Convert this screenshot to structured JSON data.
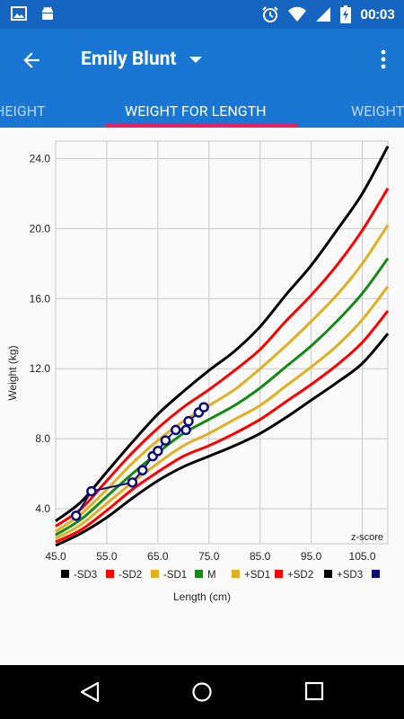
{
  "status_bar": {
    "time": "00:03",
    "icons": [
      "image-icon",
      "android-icon",
      "alarm-icon",
      "wifi-icon",
      "signal-icon",
      "battery-charging-icon"
    ]
  },
  "toolbar": {
    "title": "Emily Blunt",
    "back_icon": "arrow-back-icon",
    "dropdown_icon": "dropdown-arrow-icon",
    "more_icon": "more-vert-icon"
  },
  "tabs": [
    {
      "label": "HEIGHT",
      "selected": false
    },
    {
      "label": "WEIGHT FOR LENGTH",
      "selected": true
    },
    {
      "label": "WEIGHT",
      "selected": false
    }
  ],
  "colors": {
    "primary": "#1976d2",
    "primary_dark": "#1565c0",
    "accent": "#e91e63"
  },
  "chart_data": {
    "type": "line",
    "xlabel": "Length (cm)",
    "ylabel": "Weight (kg)",
    "annotation": "z-score",
    "xlim": [
      45,
      110
    ],
    "ylim": [
      2,
      25
    ],
    "x_ticks": [
      "45.0",
      "55.0",
      "65.0",
      "75.0",
      "85.0",
      "95.0",
      "105.0"
    ],
    "y_ticks": [
      "4.0",
      "8.0",
      "12.0",
      "16.0",
      "20.0",
      "24.0"
    ],
    "grid": true,
    "legend_position": "bottom",
    "legend": [
      {
        "label": "-SD3",
        "color": "#000000"
      },
      {
        "label": "-SD2",
        "color": "#ff0000"
      },
      {
        "label": "-SD1",
        "color": "#e0b020"
      },
      {
        "label": "M",
        "color": "#138a13"
      },
      {
        "label": "+SD1",
        "color": "#e0b020"
      },
      {
        "label": "+SD2",
        "color": "#ff0000"
      },
      {
        "label": "+SD3",
        "color": "#000000"
      },
      {
        "label": "",
        "color": "#0b0b7a"
      }
    ],
    "x": [
      45,
      50,
      55,
      60,
      65,
      70,
      75,
      80,
      85,
      90,
      95,
      100,
      105,
      110
    ],
    "series": [
      {
        "name": "-SD3",
        "color": "#000000",
        "values": [
          1.9,
          2.6,
          3.5,
          4.6,
          5.6,
          6.4,
          7.0,
          7.6,
          8.3,
          9.2,
          10.2,
          11.2,
          12.3,
          14.0
        ]
      },
      {
        "name": "-SD2",
        "color": "#ff0000",
        "values": [
          2.1,
          2.8,
          3.9,
          5.1,
          6.1,
          7.0,
          7.6,
          8.3,
          9.1,
          10.1,
          11.1,
          12.2,
          13.5,
          15.3
        ]
      },
      {
        "name": "-SD1",
        "color": "#e0b020",
        "values": [
          2.3,
          3.1,
          4.3,
          5.5,
          6.6,
          7.6,
          8.3,
          9.1,
          9.9,
          11.0,
          12.1,
          13.3,
          14.8,
          16.7
        ]
      },
      {
        "name": "M",
        "color": "#138a13",
        "values": [
          2.5,
          3.4,
          4.7,
          6.0,
          7.2,
          8.3,
          9.1,
          9.9,
          10.9,
          12.1,
          13.3,
          14.7,
          16.3,
          18.3
        ]
      },
      {
        "name": "+SD1",
        "color": "#e0b020",
        "values": [
          2.7,
          3.7,
          5.1,
          6.6,
          7.9,
          9.0,
          9.9,
          10.8,
          12.0,
          13.3,
          14.7,
          16.2,
          18.0,
          20.2
        ]
      },
      {
        "name": "+SD2",
        "color": "#ff0000",
        "values": [
          3.0,
          4.0,
          5.6,
          7.2,
          8.6,
          9.8,
          10.8,
          11.9,
          13.1,
          14.7,
          16.2,
          17.9,
          19.9,
          22.3
        ]
      },
      {
        "name": "+SD3",
        "color": "#000000",
        "values": [
          3.3,
          4.4,
          6.1,
          7.8,
          9.4,
          10.7,
          11.9,
          13.0,
          14.4,
          16.2,
          17.9,
          19.9,
          22.0,
          24.7
        ]
      }
    ],
    "measurements": {
      "color": "#0b0b7a",
      "points": [
        {
          "x": 49,
          "y": 3.6
        },
        {
          "x": 52,
          "y": 5.0
        },
        {
          "x": 60,
          "y": 5.5
        },
        {
          "x": 62,
          "y": 6.2
        },
        {
          "x": 64,
          "y": 7.0
        },
        {
          "x": 65,
          "y": 7.3
        },
        {
          "x": 66.5,
          "y": 7.9
        },
        {
          "x": 68.5,
          "y": 8.5
        },
        {
          "x": 70.5,
          "y": 8.5
        },
        {
          "x": 71,
          "y": 9.0
        },
        {
          "x": 73,
          "y": 9.5
        },
        {
          "x": 74,
          "y": 9.8
        }
      ]
    }
  }
}
